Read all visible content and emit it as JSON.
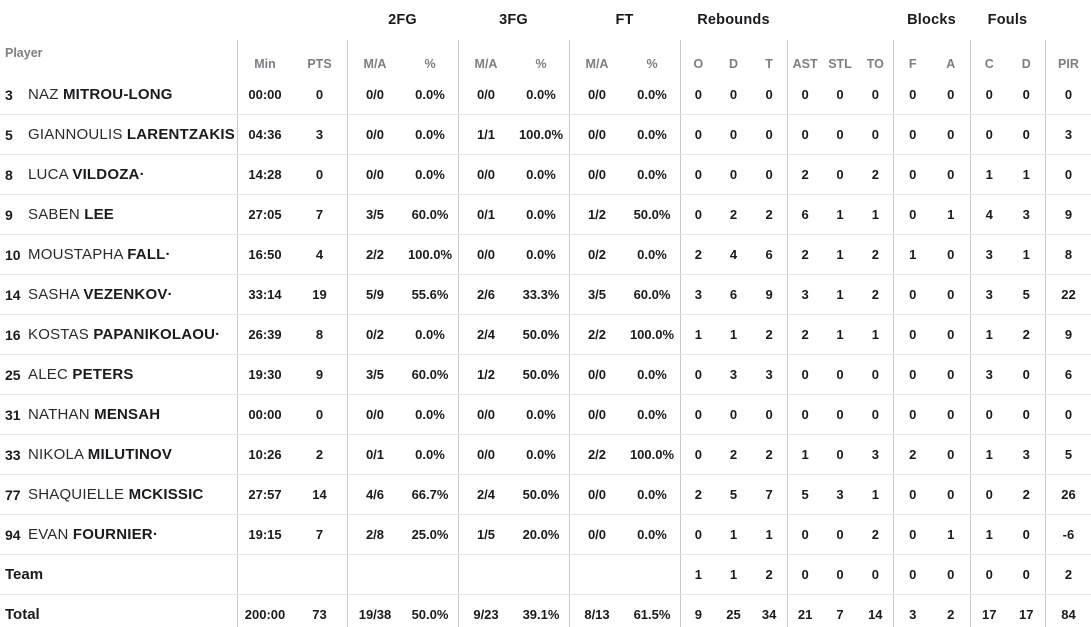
{
  "table": {
    "player_column_label": "Player",
    "group_headers": {
      "fg2": "2FG",
      "fg3": "3FG",
      "ft": "FT",
      "rebounds": "Rebounds",
      "blocks": "Blocks",
      "fouls": "Fouls"
    },
    "sub_headers": [
      "Min",
      "PTS",
      "M/A",
      "%",
      "M/A",
      "%",
      "M/A",
      "%",
      "O",
      "D",
      "T",
      "AST",
      "STL",
      "TO",
      "F",
      "A",
      "C",
      "D",
      "PIR"
    ],
    "starter_marker": "·",
    "colors": {
      "text_dark": "#1b1b1f",
      "text_gray": "#7d7d83",
      "vertical_line": "#c8c8c8",
      "horizontal_line": "#e6e6e6",
      "background": "#ffffff"
    },
    "rows": [
      {
        "number": "3",
        "first": "NAZ",
        "last": "MITROU-LONG",
        "starter": false,
        "stats": [
          "00:00",
          "0",
          "0/0",
          "0.0%",
          "0/0",
          "0.0%",
          "0/0",
          "0.0%",
          "0",
          "0",
          "0",
          "0",
          "0",
          "0",
          "0",
          "0",
          "0",
          "0",
          "0"
        ]
      },
      {
        "number": "5",
        "first": "GIANNOULIS",
        "last": "LARENTZAKIS",
        "starter": false,
        "stats": [
          "04:36",
          "3",
          "0/0",
          "0.0%",
          "1/1",
          "100.0%",
          "0/0",
          "0.0%",
          "0",
          "0",
          "0",
          "0",
          "0",
          "0",
          "0",
          "0",
          "0",
          "0",
          "3"
        ]
      },
      {
        "number": "8",
        "first": "LUCA",
        "last": "VILDOZA",
        "starter": true,
        "stats": [
          "14:28",
          "0",
          "0/0",
          "0.0%",
          "0/0",
          "0.0%",
          "0/0",
          "0.0%",
          "0",
          "0",
          "0",
          "2",
          "0",
          "2",
          "0",
          "0",
          "1",
          "1",
          "0"
        ]
      },
      {
        "number": "9",
        "first": "SABEN",
        "last": "LEE",
        "starter": false,
        "stats": [
          "27:05",
          "7",
          "3/5",
          "60.0%",
          "0/1",
          "0.0%",
          "1/2",
          "50.0%",
          "0",
          "2",
          "2",
          "6",
          "1",
          "1",
          "0",
          "1",
          "4",
          "3",
          "9"
        ]
      },
      {
        "number": "10",
        "first": "MOUSTAPHA",
        "last": "FALL",
        "starter": true,
        "stats": [
          "16:50",
          "4",
          "2/2",
          "100.0%",
          "0/0",
          "0.0%",
          "0/2",
          "0.0%",
          "2",
          "4",
          "6",
          "2",
          "1",
          "2",
          "1",
          "0",
          "3",
          "1",
          "8"
        ]
      },
      {
        "number": "14",
        "first": "SASHA",
        "last": "VEZENKOV",
        "starter": true,
        "stats": [
          "33:14",
          "19",
          "5/9",
          "55.6%",
          "2/6",
          "33.3%",
          "3/5",
          "60.0%",
          "3",
          "6",
          "9",
          "3",
          "1",
          "2",
          "0",
          "0",
          "3",
          "5",
          "22"
        ]
      },
      {
        "number": "16",
        "first": "KOSTAS",
        "last": "PAPANIKOLAOU",
        "starter": true,
        "stats": [
          "26:39",
          "8",
          "0/2",
          "0.0%",
          "2/4",
          "50.0%",
          "2/2",
          "100.0%",
          "1",
          "1",
          "2",
          "2",
          "1",
          "1",
          "0",
          "0",
          "1",
          "2",
          "9"
        ]
      },
      {
        "number": "25",
        "first": "ALEC",
        "last": "PETERS",
        "starter": false,
        "stats": [
          "19:30",
          "9",
          "3/5",
          "60.0%",
          "1/2",
          "50.0%",
          "0/0",
          "0.0%",
          "0",
          "3",
          "3",
          "0",
          "0",
          "0",
          "0",
          "0",
          "3",
          "0",
          "6"
        ]
      },
      {
        "number": "31",
        "first": "NATHAN",
        "last": "MENSAH",
        "starter": false,
        "stats": [
          "00:00",
          "0",
          "0/0",
          "0.0%",
          "0/0",
          "0.0%",
          "0/0",
          "0.0%",
          "0",
          "0",
          "0",
          "0",
          "0",
          "0",
          "0",
          "0",
          "0",
          "0",
          "0"
        ]
      },
      {
        "number": "33",
        "first": "NIKOLA",
        "last": "MILUTINOV",
        "starter": false,
        "stats": [
          "10:26",
          "2",
          "0/1",
          "0.0%",
          "0/0",
          "0.0%",
          "2/2",
          "100.0%",
          "0",
          "2",
          "2",
          "1",
          "0",
          "3",
          "2",
          "0",
          "1",
          "3",
          "5"
        ]
      },
      {
        "number": "77",
        "first": "SHAQUIELLE",
        "last": "MCKISSIC",
        "starter": false,
        "stats": [
          "27:57",
          "14",
          "4/6",
          "66.7%",
          "2/4",
          "50.0%",
          "0/0",
          "0.0%",
          "2",
          "5",
          "7",
          "5",
          "3",
          "1",
          "0",
          "0",
          "0",
          "2",
          "26"
        ]
      },
      {
        "number": "94",
        "first": "EVAN",
        "last": "FOURNIER",
        "starter": true,
        "stats": [
          "19:15",
          "7",
          "2/8",
          "25.0%",
          "1/5",
          "20.0%",
          "0/0",
          "0.0%",
          "0",
          "1",
          "1",
          "0",
          "0",
          "2",
          "0",
          "1",
          "1",
          "0",
          "-6"
        ]
      },
      {
        "label": "Team",
        "stats": [
          "",
          "",
          "",
          "",
          "",
          "",
          "",
          "",
          "1",
          "1",
          "2",
          "0",
          "0",
          "0",
          "0",
          "0",
          "0",
          "0",
          "2"
        ]
      },
      {
        "label": "Total",
        "stats": [
          "200:00",
          "73",
          "19/38",
          "50.0%",
          "9/23",
          "39.1%",
          "8/13",
          "61.5%",
          "9",
          "25",
          "34",
          "21",
          "7",
          "14",
          "3",
          "2",
          "17",
          "17",
          "84"
        ]
      }
    ]
  }
}
